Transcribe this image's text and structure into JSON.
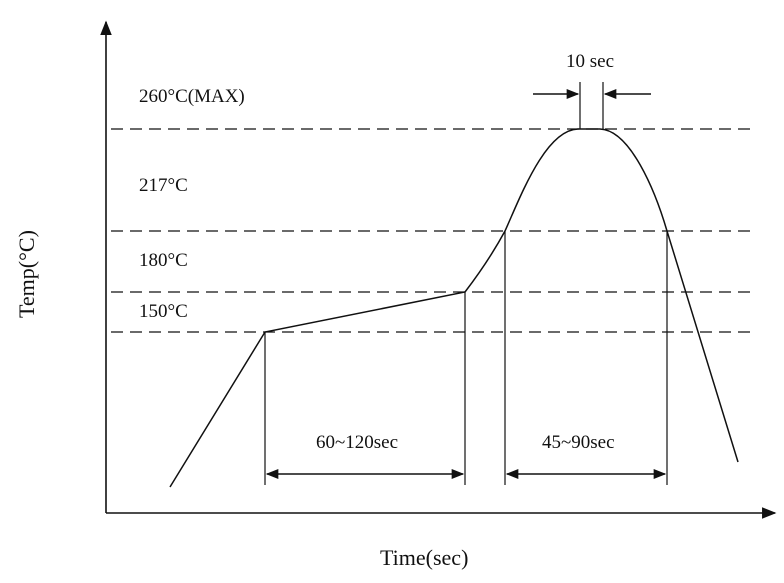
{
  "axes": {
    "x_label": "Time(sec)",
    "y_label": "Temp(°C)"
  },
  "temperature_levels": [
    {
      "id": "max",
      "label": "260°C(MAX)"
    },
    {
      "id": "t217",
      "label": "217°C"
    },
    {
      "id": "t180",
      "label": "180°C"
    },
    {
      "id": "t150",
      "label": "150°C"
    }
  ],
  "intervals": {
    "preheat": "60~120sec",
    "above_liquidus": "45~90sec",
    "peak": "10 sec"
  },
  "colors": {
    "line": "#111111",
    "background": "#ffffff"
  }
}
